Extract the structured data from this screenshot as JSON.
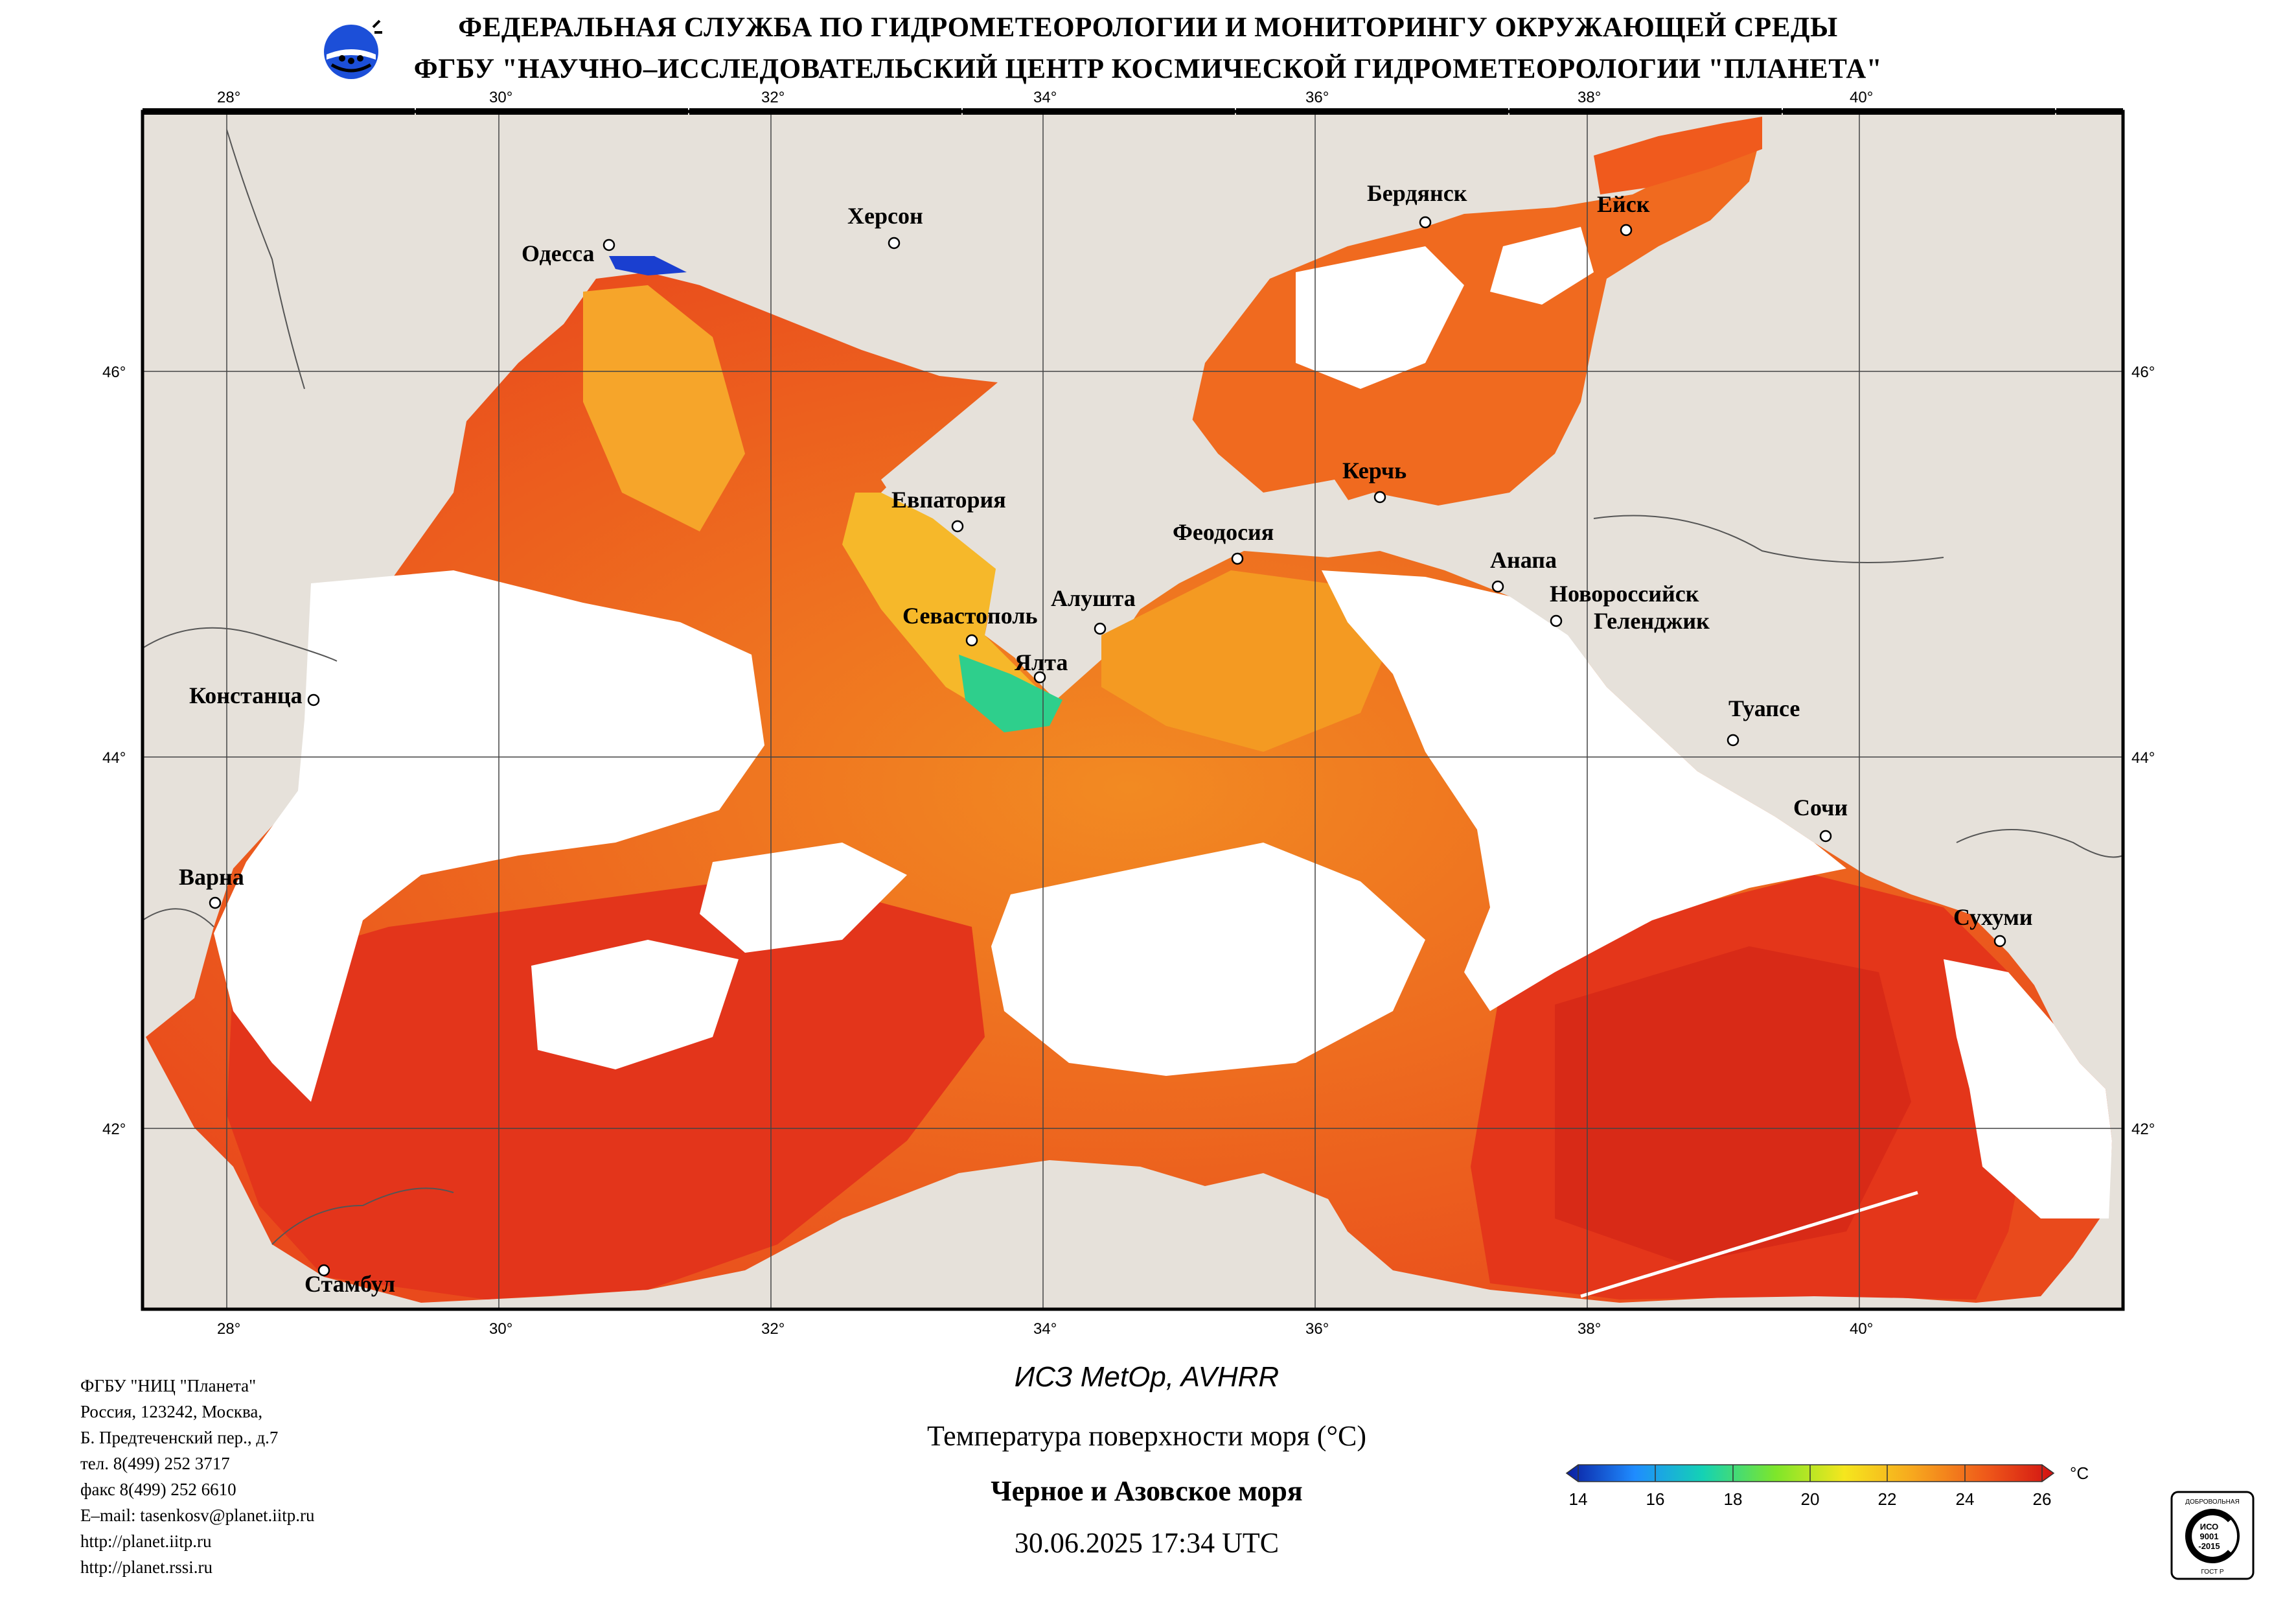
{
  "header": {
    "line1": "ФЕДЕРАЛЬНАЯ СЛУЖБА ПО ГИДРОМЕТЕОРОЛОГИИ И МОНИТОРИНГУ ОКРУЖАЮЩЕЙ СРЕДЫ",
    "line2": "ФГБУ \"НАУЧНО–ИССЛЕДОВАТЕЛЬСКИЙ ЦЕНТР КОСМИЧЕСКОЙ ГИДРОМЕТЕОРОЛОГИИ \"ПЛАНЕТА\""
  },
  "map": {
    "lon_ticks": [
      "28°",
      "30°",
      "32°",
      "34°",
      "36°",
      "38°",
      "40°"
    ],
    "lat_ticks": [
      "46°",
      "44°",
      "42°"
    ],
    "cities": [
      "Одесса",
      "Херсон",
      "Бердянск",
      "Ейск",
      "Евпатория",
      "Керчь",
      "Феодосия",
      "Анапа",
      "Новороссийск",
      "Геленджик",
      "Севастополь",
      "Алушта",
      "Ялта",
      "Констанца",
      "Туапсе",
      "Сочи",
      "Варна",
      "Сухуми",
      "Стамбул"
    ],
    "colors": {
      "land": "#e6e1da",
      "cloud": "#ffffff",
      "sea_warm": "#e8321a",
      "sea_mid": "#f47a1e",
      "sea_cool": "#f7c425"
    }
  },
  "info": {
    "lines": [
      "ФГБУ \"НИЦ \"Планета\"",
      "Россия, 123242, Москва,",
      "Б. Предтеченский пер., д.7",
      "тел. 8(499) 252 3717",
      "факс 8(499) 252 6610",
      "E–mail: tasenkosv@planet.iitp.ru",
      "http://planet.iitp.ru",
      "http://planet.rssi.ru"
    ]
  },
  "caption": {
    "satellite": "ИСЗ MetOp, AVHRR",
    "parameter": "Температура поверхности моря (°C)",
    "region": "Черное и Азовское моря",
    "datetime": "30.06.2025 17:34 UTC"
  },
  "legend": {
    "unit": "°C",
    "ticks": [
      "14",
      "16",
      "18",
      "20",
      "22",
      "24",
      "26"
    ],
    "colors": [
      "#0a1ea0",
      "#1f8cff",
      "#14d2b4",
      "#7ee62a",
      "#f5e61e",
      "#f7a81e",
      "#ef5a1a",
      "#d21212"
    ]
  },
  "iso_badge": {
    "top_text": "ДОБРОВОЛЬНАЯ",
    "center_text": [
      "ИСО",
      "9001",
      "-2015"
    ],
    "bottom_text": "ГОСТ Р"
  }
}
